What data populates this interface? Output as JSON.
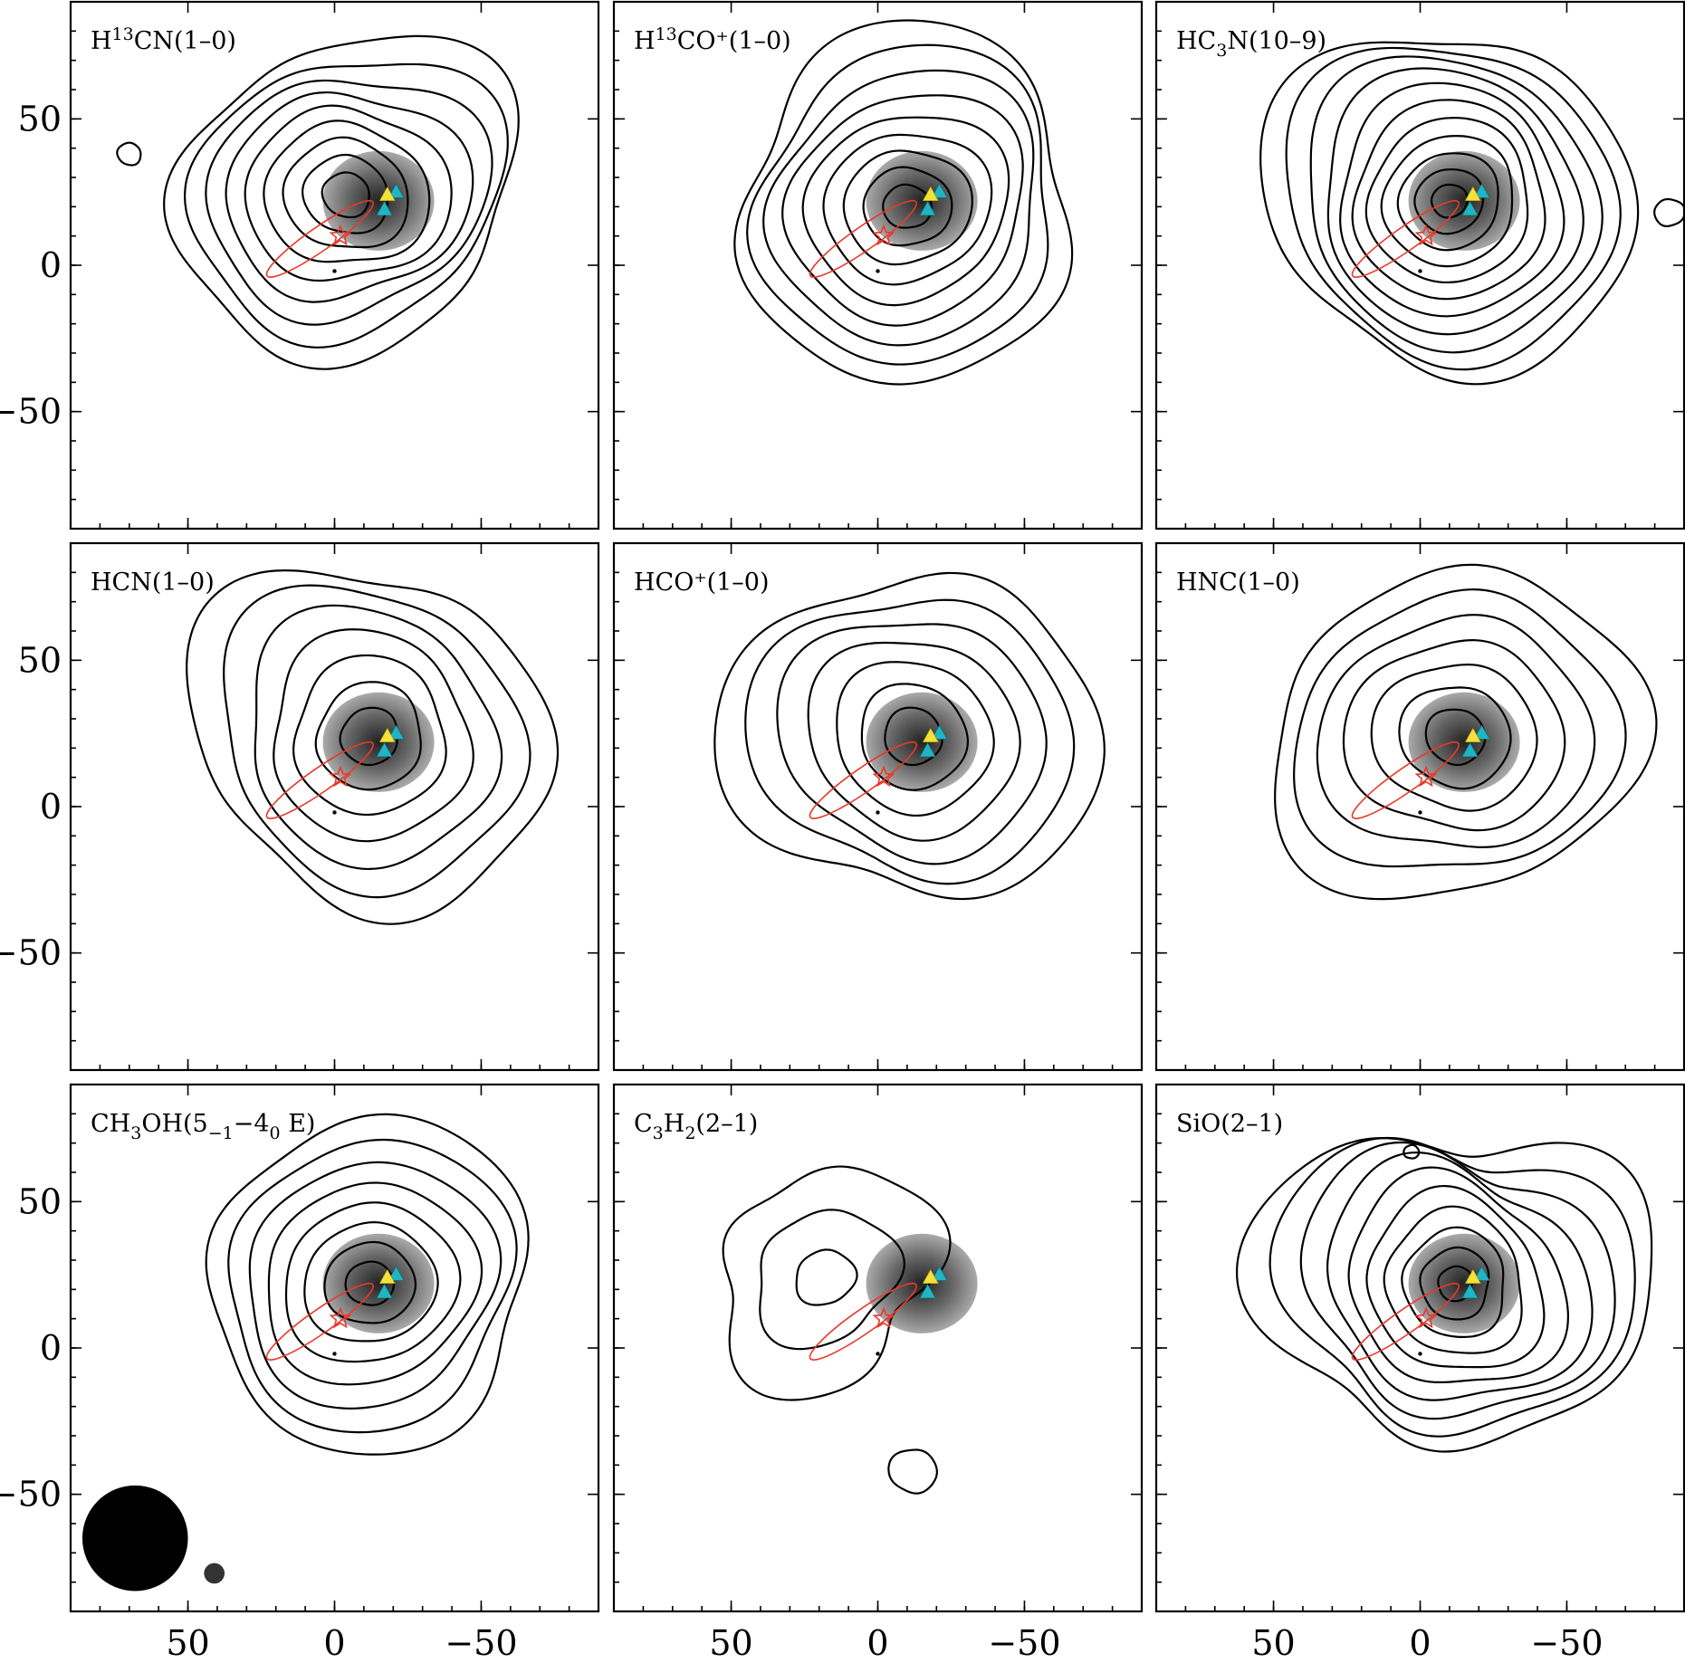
{
  "chart_data": {
    "type": "contour",
    "description_units": "offsets",
    "x_range": [
      90,
      -90
    ],
    "y_range": [
      -90,
      90
    ],
    "x_ticks": [
      50,
      0,
      -50
    ],
    "y_ticks": [
      50,
      0,
      -50
    ],
    "x_tick_labels": [
      "50",
      "0",
      "−50"
    ],
    "y_tick_labels": [
      "50",
      "0",
      "−50"
    ],
    "grid": false,
    "continuum_peak": {
      "x": -15,
      "y": 22
    },
    "cyan_markers": [
      {
        "x": -21,
        "y": 25
      },
      {
        "x": -17,
        "y": 19
      }
    ],
    "yellow_marker": {
      "x": -18,
      "y": 24
    },
    "star_marker": {
      "x": -2,
      "y": 10
    },
    "outflow_ellipse": {
      "cx": 5,
      "cy": 9,
      "rx": 22,
      "ry": 4,
      "angle": -35
    },
    "dot_marker": {
      "x": 0,
      "y": -2
    },
    "panels": [
      {
        "id": "h13cn",
        "label_main": "H",
        "label_sup": "13",
        "label_rest": "CN(1–0)",
        "cx": -4,
        "cy": 24,
        "n": 9,
        "r0": 8,
        "dr": 6.2,
        "outer": [
          {
            "type": "loop",
            "cx": 70,
            "cy": 38,
            "r": 4
          }
        ],
        "shape": 0.14
      },
      {
        "id": "h13co",
        "label_main": "H",
        "label_sup": "13",
        "label_rest": "CO⁺(1–0)",
        "cx": -10,
        "cy": 20,
        "n": 9,
        "r0": 8,
        "dr": 6.5,
        "outer": [],
        "shape": 0.12
      },
      {
        "id": "hc3n",
        "label_main": "HC",
        "label_sub": "3",
        "label_rest": "N(10–9)",
        "cx": -10,
        "cy": 22,
        "n": 11,
        "r0": 6,
        "dr": 5.6,
        "outer": [
          {
            "type": "loop",
            "cx": -85,
            "cy": 18,
            "r": 5
          }
        ],
        "shape": 0.1
      },
      {
        "id": "hcn",
        "label_main": "HCN(1–0)",
        "cx": -12,
        "cy": 24,
        "n": 7,
        "r0": 10,
        "dr": 8.5,
        "outer": [],
        "shape": 0.14
      },
      {
        "id": "hcop",
        "label_main": "HCO⁺(1–0)",
        "cx": -12,
        "cy": 24,
        "n": 7,
        "r0": 10,
        "dr": 8.5,
        "outer": [],
        "shape": 0.12
      },
      {
        "id": "hnc",
        "label_main": "HNC(1–0)",
        "cx": -12,
        "cy": 24,
        "n": 7,
        "r0": 10,
        "dr": 8.5,
        "outer": [],
        "shape": 0.12
      },
      {
        "id": "ch3oh",
        "label_main": "CH",
        "label_sub": "3",
        "label_rest": "OH(5",
        "label_sub2": "−1",
        "label_rest2": "−4",
        "label_sub3": "0",
        "label_rest3": " E)",
        "cx": -12,
        "cy": 22,
        "n": 8,
        "r0": 8,
        "dr": 7.0,
        "outer": [],
        "shape": 0.1
      },
      {
        "id": "c3h2",
        "label_main": "C",
        "label_sub": "3",
        "label_rest": "H",
        "label_sub2": "2",
        "label_rest2": "(2–1)",
        "cx": 18,
        "cy": 24,
        "n": 3,
        "r0": 10,
        "dr": 14,
        "outer": [
          {
            "type": "loop",
            "cx": -12,
            "cy": -42,
            "r": 8
          }
        ],
        "shape": 0.25
      },
      {
        "id": "sio",
        "label_main": "SiO(2–1)",
        "cx": -12,
        "cy": 22,
        "n": 10,
        "r0": 6,
        "dr": 6.2,
        "outer": [
          {
            "type": "loop",
            "cx": 3,
            "cy": 67,
            "r": 2.5
          }
        ],
        "shape": 0.18
      }
    ],
    "beam_large": {
      "x": 68,
      "y": -65,
      "r": 18
    },
    "beam_small": {
      "x": 41,
      "y": -77,
      "r": 3.5
    }
  }
}
